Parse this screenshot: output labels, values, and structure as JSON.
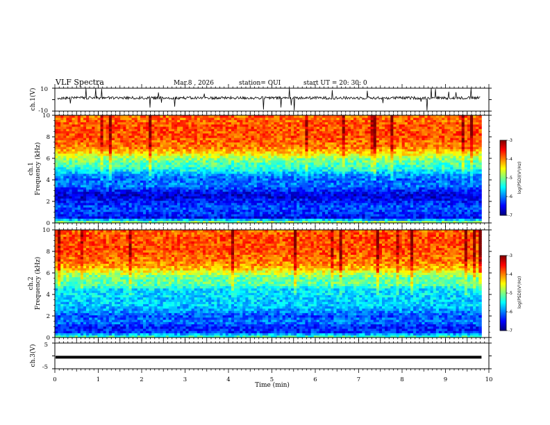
{
  "header": {
    "title": "VLF Spectra",
    "date": "Mar.8 , 2026",
    "station": "station= OUI",
    "start_ut": "start UT = 20: 30: 0"
  },
  "chart_data": {
    "type": "heatmap",
    "x": {
      "label": "Time (min)",
      "range": [
        0,
        10
      ],
      "ticks": [
        "0",
        "1",
        "2",
        "3",
        "4",
        "5",
        "6",
        "7",
        "8",
        "9",
        "10"
      ]
    },
    "panels": [
      {
        "id": "waveform1",
        "type": "line",
        "ylabel": "ch.1(V)",
        "ylim": [
          -10,
          10
        ],
        "yticks": [
          "10",
          "-10"
        ]
      },
      {
        "id": "spec1",
        "type": "heatmap",
        "ylabel_top": "ch.1",
        "ylabel": "Frequency (kHz)",
        "ylim": [
          0,
          10
        ],
        "yticks": [
          "0",
          "2",
          "4",
          "6",
          "8",
          "10"
        ],
        "colorbar": {
          "range": [
            -7,
            -3
          ],
          "ticks": [
            "-3",
            "-4",
            "-5",
            "-6",
            "-7"
          ],
          "label": "log(PSD)(V²/Hz)"
        }
      },
      {
        "id": "spec2",
        "type": "heatmap",
        "ylabel_top": "ch.2",
        "ylabel": "Frequency (kHz)",
        "ylim": [
          0,
          10
        ],
        "yticks": [
          "0",
          "2",
          "4",
          "6",
          "8",
          "10"
        ],
        "colorbar": {
          "range": [
            -7,
            -3
          ],
          "ticks": [
            "-3",
            "-4",
            "-5",
            "-6",
            "-7"
          ],
          "label": "log(PSD)(V²/Hz)"
        }
      },
      {
        "id": "waveform3",
        "type": "line",
        "ylabel": "ch.3(V)",
        "ylim": [
          -5,
          5
        ],
        "yticks": [
          "5",
          "-5"
        ],
        "constant_value": -0.5
      }
    ],
    "data_end_min": 9.83,
    "spectral_profiles": {
      "freq_khz": [
        0,
        0.5,
        1,
        1.5,
        2,
        2.5,
        3,
        3.5,
        4,
        4.5,
        5,
        5.5,
        6,
        6.5,
        7,
        7.5,
        8,
        8.5,
        9,
        9.5,
        10
      ],
      "ch1_logpsd": [
        -4.6,
        -6.5,
        -6.3,
        -6.2,
        -6.4,
        -6.7,
        -6.4,
        -6.0,
        -6.1,
        -5.9,
        -5.4,
        -5.2,
        -4.9,
        -4.4,
        -4.0,
        -3.9,
        -3.8,
        -3.8,
        -3.8,
        -3.9,
        -3.9
      ],
      "ch2_logpsd": [
        -5.0,
        -6.3,
        -6.4,
        -6.0,
        -6.2,
        -5.9,
        -5.7,
        -5.7,
        -5.6,
        -5.6,
        -5.1,
        -5.1,
        -4.7,
        -4.2,
        -4.0,
        -3.9,
        -3.8,
        -3.8,
        -3.8,
        -3.8,
        -3.9
      ]
    }
  }
}
